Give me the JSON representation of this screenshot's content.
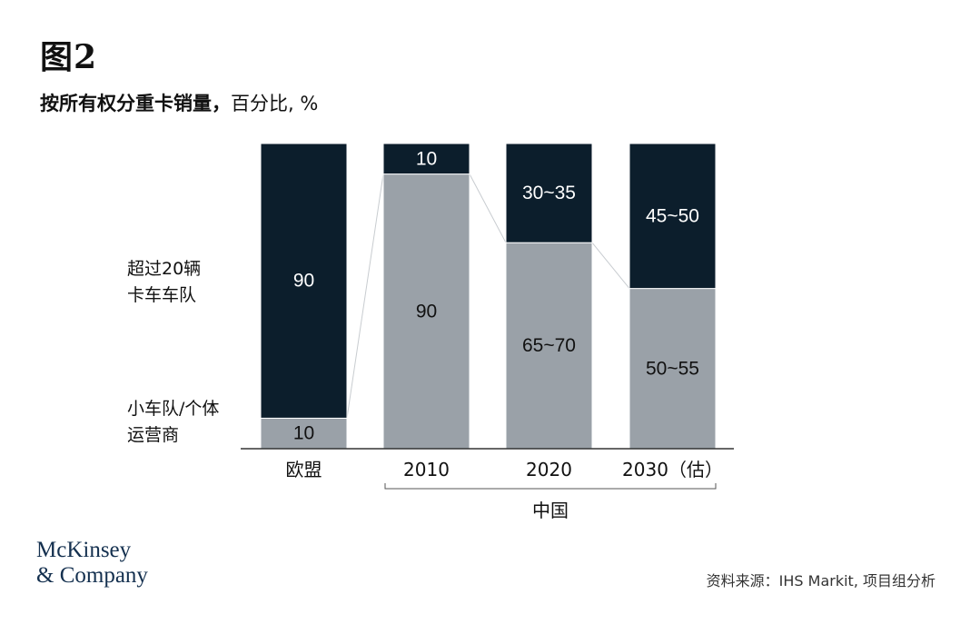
{
  "figure_number": "图2",
  "subtitle": {
    "bold_part": "按所有权分重卡销量，",
    "rest": "百分比, %"
  },
  "chart_data": {
    "type": "bar",
    "stacked": true,
    "categories": [
      "欧盟",
      "2010",
      "2020",
      "2030（估）"
    ],
    "group_label": "中国",
    "series": [
      {
        "name": "小车队/个体运营商",
        "legend_lines": [
          "小车队/个体",
          "运营商"
        ],
        "color": "#9aa1a8",
        "labels": [
          "10",
          "90",
          "65~70",
          "50~55"
        ],
        "values": [
          10,
          90,
          67.5,
          52.5
        ]
      },
      {
        "name": "超过20辆卡车车队",
        "legend_lines": [
          "超过20辆",
          "卡车车队"
        ],
        "color": "#0c1e2c",
        "labels": [
          "90",
          "10",
          "30~35",
          "45~50"
        ],
        "values": [
          90,
          10,
          32.5,
          47.5
        ]
      }
    ],
    "ylim": [
      0,
      100
    ]
  },
  "logo": {
    "line1": "McKinsey",
    "line2": "& Company"
  },
  "source": "资料来源：IHS Markit, 项目组分析"
}
